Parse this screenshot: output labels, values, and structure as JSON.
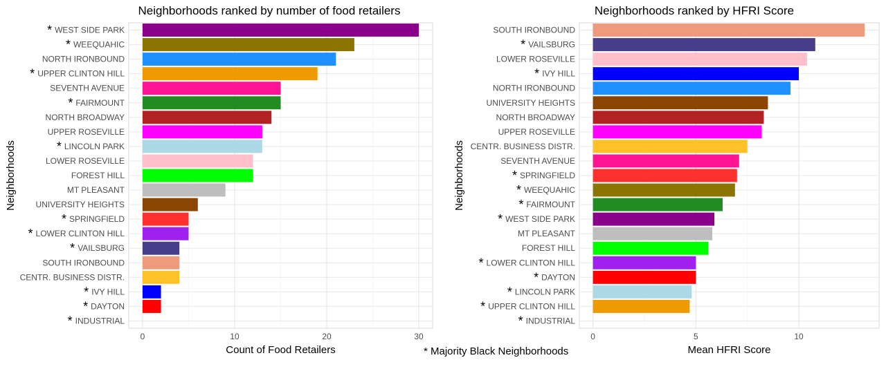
{
  "footnote": "* Majority Black Neighborhoods",
  "chart_data": [
    {
      "type": "bar",
      "orientation": "horizontal",
      "title": "Neighborhoods ranked by number of food retailers",
      "xlabel": "Count of Food Retailers",
      "ylabel": "Neighborhoods",
      "xlim": [
        -1.5,
        31.5
      ],
      "xticks": [
        0,
        10,
        20,
        30
      ],
      "grid": true,
      "categories": [
        "WEST SIDE PARK",
        "WEEQUAHIC",
        "NORTH IRONBOUND",
        "UPPER CLINTON HILL",
        "SEVENTH AVENUE",
        "FAIRMOUNT",
        "NORTH BROADWAY",
        "UPPER ROSEVILLE",
        "LINCOLN PARK",
        "LOWER ROSEVILLE",
        "FOREST HILL",
        "MT PLEASANT",
        "UNIVERSITY HEIGHTS",
        "SPRINGFIELD",
        "LOWER CLINTON HILL",
        "VAILSBURG",
        "SOUTH IRONBOUND",
        "CENTR. BUSINESS DISTR.",
        "IVY HILL",
        "DAYTON",
        "INDUSTRIAL"
      ],
      "values": [
        30,
        23,
        21,
        19,
        15,
        15,
        14,
        13,
        13,
        12,
        12,
        9,
        6,
        5,
        5,
        4,
        4,
        4,
        2,
        2,
        0
      ],
      "marked": [
        true,
        true,
        false,
        true,
        false,
        true,
        false,
        false,
        true,
        false,
        false,
        false,
        false,
        true,
        true,
        true,
        false,
        false,
        true,
        true,
        true
      ],
      "colors": [
        "#8B008B",
        "#8B7500",
        "#1E90FF",
        "#EE9A00",
        "#FF1493",
        "#228B22",
        "#B22222",
        "#FF00FF",
        "#ADD8E6",
        "#FFC0CB",
        "#00FF00",
        "#BEBEBE",
        "#8B4500",
        "#FF3030",
        "#A020F0",
        "#483D8B",
        "#EE9A7D",
        "#FFC125",
        "#0000FF",
        "#FF0000",
        "#333333"
      ]
    },
    {
      "type": "bar",
      "orientation": "horizontal",
      "title": "Neighborhoods ranked by HFRI Score",
      "xlabel": "Mean HFRI Score",
      "ylabel": "Neighborhoods",
      "xlim": [
        -0.66,
        13.9
      ],
      "xticks": [
        0,
        5,
        10
      ],
      "grid": true,
      "categories": [
        "SOUTH IRONBOUND",
        "VAILSBURG",
        "LOWER ROSEVILLE",
        "IVY HILL",
        "NORTH IRONBOUND",
        "UNIVERSITY HEIGHTS",
        "NORTH BROADWAY",
        "UPPER ROSEVILLE",
        "CENTR. BUSINESS DISTR.",
        "SEVENTH AVENUE",
        "SPRINGFIELD",
        "WEEQUAHIC",
        "FAIRMOUNT",
        "WEST SIDE PARK",
        "MT PLEASANT",
        "FOREST HILL",
        "LOWER CLINTON HILL",
        "DAYTON",
        "LINCOLN PARK",
        "UPPER CLINTON HILL",
        "INDUSTRIAL"
      ],
      "values": [
        13.2,
        10.8,
        10.4,
        10.0,
        9.6,
        8.5,
        8.3,
        8.2,
        7.5,
        7.1,
        7.0,
        6.9,
        6.3,
        5.9,
        5.8,
        5.6,
        5.0,
        5.0,
        4.8,
        4.7,
        0
      ],
      "marked": [
        false,
        true,
        false,
        true,
        false,
        false,
        false,
        false,
        false,
        false,
        true,
        true,
        true,
        true,
        false,
        false,
        true,
        true,
        true,
        true,
        true
      ],
      "colors": [
        "#EE9A7D",
        "#483D8B",
        "#FFC0CB",
        "#0000FF",
        "#1E90FF",
        "#8B4500",
        "#B22222",
        "#FF00FF",
        "#FFC125",
        "#FF1493",
        "#FF3030",
        "#8B7500",
        "#228B22",
        "#8B008B",
        "#BEBEBE",
        "#00FF00",
        "#A020F0",
        "#FF0000",
        "#ADD8E6",
        "#EE9A00",
        "#333333"
      ]
    }
  ]
}
